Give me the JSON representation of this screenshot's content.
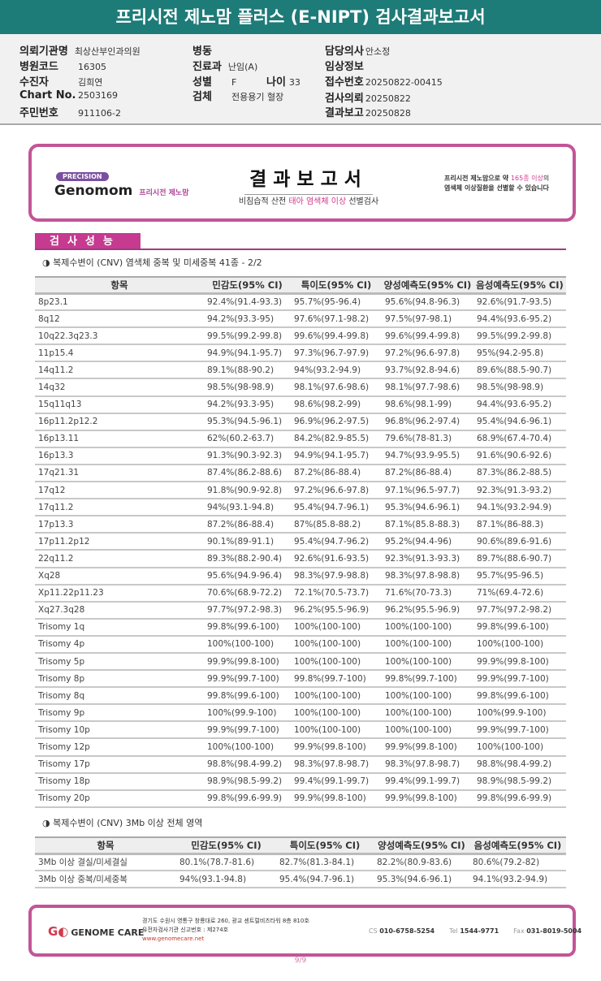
{
  "title": "프리시전 제노맘 플러스 (E-NIPT) 검사결과보고서",
  "patient": {
    "hospital_label": "의뢰기관명",
    "hospital": "최상산부인과의원",
    "code_label": "병원코드",
    "code": "16305",
    "name_label": "수진자",
    "name": "김희연",
    "chart_label": "Chart No.",
    "chart": "2503169",
    "rrn_label": "주민번호",
    "rrn": "911106-2",
    "ward_label": "병동",
    "ward": "",
    "dept_label": "진료과",
    "dept": "난임(A)",
    "sex_label": "성별",
    "sex": "F",
    "age_label": "나이",
    "age": "33",
    "specimen_label": "검체",
    "specimen": "전용용기 혈장",
    "doctor_label": "담당의사",
    "doctor": "안소정",
    "clinical_label": "임상정보",
    "clinical": "",
    "receipt_label": "접수번호",
    "receipt": "20250822-00415",
    "request_label": "검사의뢰",
    "request": "20250822",
    "report_label": "결과보고",
    "report": "20250828"
  },
  "banner": {
    "precision": "PRECISION",
    "brand": "Genomom",
    "brand_kr": "프리시전 제노맘",
    "title": "결과보고서",
    "sub_a": "비침습적 산전 ",
    "sub_b": "태아 염색체 이상",
    "sub_c": " 선별검사",
    "right_a": "프리시전 제노맘으로 약 ",
    "right_b": "165종 이상",
    "right_c": "의",
    "right_d": "염색체 이상질환을 선별할 수 있습니다"
  },
  "section": "검사성능",
  "sub1": "◑ 복제수변이 (CNV) 염색체 중복 및 미세중복 41종 - 2/2",
  "sub2": "◑ 복제수변이 (CNV) 3Mb 이상 전체 영역",
  "headers": [
    "항목",
    "민감도(95% CI)",
    "특이도(95% CI)",
    "양성예측도(95% CI)",
    "음성예측도(95% CI)"
  ],
  "table1": [
    [
      "8p23.1",
      "92.4%(91.4-93.3)",
      "95.7%(95-96.4)",
      "95.6%(94.8-96.3)",
      "92.6%(91.7-93.5)"
    ],
    [
      "8q12",
      "94.2%(93.3-95)",
      "97.6%(97.1-98.2)",
      "97.5%(97-98.1)",
      "94.4%(93.6-95.2)"
    ],
    [
      "10q22.3q23.3",
      "99.5%(99.2-99.8)",
      "99.6%(99.4-99.8)",
      "99.6%(99.4-99.8)",
      "99.5%(99.2-99.8)"
    ],
    [
      "11p15.4",
      "94.9%(94.1-95.7)",
      "97.3%(96.7-97.9)",
      "97.2%(96.6-97.8)",
      "95%(94.2-95.8)"
    ],
    [
      "14q11.2",
      "89.1%(88-90.2)",
      "94%(93.2-94.9)",
      "93.7%(92.8-94.6)",
      "89.6%(88.5-90.7)"
    ],
    [
      "14q32",
      "98.5%(98-98.9)",
      "98.1%(97.6-98.6)",
      "98.1%(97.7-98.6)",
      "98.5%(98-98.9)"
    ],
    [
      "15q11q13",
      "94.2%(93.3-95)",
      "98.6%(98.2-99)",
      "98.6%(98.1-99)",
      "94.4%(93.6-95.2)"
    ],
    [
      "16p11.2p12.2",
      "95.3%(94.5-96.1)",
      "96.9%(96.2-97.5)",
      "96.8%(96.2-97.4)",
      "95.4%(94.6-96.1)"
    ],
    [
      "16p13.11",
      "62%(60.2-63.7)",
      "84.2%(82.9-85.5)",
      "79.6%(78-81.3)",
      "68.9%(67.4-70.4)"
    ],
    [
      "16p13.3",
      "91.3%(90.3-92.3)",
      "94.9%(94.1-95.7)",
      "94.7%(93.9-95.5)",
      "91.6%(90.6-92.6)"
    ],
    [
      "17q21.31",
      "87.4%(86.2-88.6)",
      "87.2%(86-88.4)",
      "87.2%(86-88.4)",
      "87.3%(86.2-88.5)"
    ],
    [
      "17q12",
      "91.8%(90.9-92.8)",
      "97.2%(96.6-97.8)",
      "97.1%(96.5-97.7)",
      "92.3%(91.3-93.2)"
    ],
    [
      "17q11.2",
      "94%(93.1-94.8)",
      "95.4%(94.7-96.1)",
      "95.3%(94.6-96.1)",
      "94.1%(93.2-94.9)"
    ],
    [
      "17p13.3",
      "87.2%(86-88.4)",
      "87%(85.8-88.2)",
      "87.1%(85.8-88.3)",
      "87.1%(86-88.3)"
    ],
    [
      "17p11.2p12",
      "90.1%(89-91.1)",
      "95.4%(94.7-96.2)",
      "95.2%(94.4-96)",
      "90.6%(89.6-91.6)"
    ],
    [
      "22q11.2",
      "89.3%(88.2-90.4)",
      "92.6%(91.6-93.5)",
      "92.3%(91.3-93.3)",
      "89.7%(88.6-90.7)"
    ],
    [
      "Xq28",
      "95.6%(94.9-96.4)",
      "98.3%(97.9-98.8)",
      "98.3%(97.8-98.8)",
      "95.7%(95-96.5)"
    ],
    [
      "Xp11.22p11.23",
      "70.6%(68.9-72.2)",
      "72.1%(70.5-73.7)",
      "71.6%(70-73.3)",
      "71%(69.4-72.6)"
    ],
    [
      "Xq27.3q28",
      "97.7%(97.2-98.3)",
      "96.2%(95.5-96.9)",
      "96.2%(95.5-96.9)",
      "97.7%(97.2-98.2)"
    ],
    [
      "Trisomy 1q",
      "99.8%(99.6-100)",
      "100%(100-100)",
      "100%(100-100)",
      "99.8%(99.6-100)"
    ],
    [
      "Trisomy 4p",
      "100%(100-100)",
      "100%(100-100)",
      "100%(100-100)",
      "100%(100-100)"
    ],
    [
      "Trisomy 5p",
      "99.9%(99.8-100)",
      "100%(100-100)",
      "100%(100-100)",
      "99.9%(99.8-100)"
    ],
    [
      "Trisomy 8p",
      "99.9%(99.7-100)",
      "99.8%(99.7-100)",
      "99.8%(99.7-100)",
      "99.9%(99.7-100)"
    ],
    [
      "Trisomy 8q",
      "99.8%(99.6-100)",
      "100%(100-100)",
      "100%(100-100)",
      "99.8%(99.6-100)"
    ],
    [
      "Trisomy 9p",
      "100%(99.9-100)",
      "100%(100-100)",
      "100%(100-100)",
      "100%(99.9-100)"
    ],
    [
      "Trisomy 10p",
      "99.9%(99.7-100)",
      "100%(100-100)",
      "100%(100-100)",
      "99.9%(99.7-100)"
    ],
    [
      "Trisomy 12p",
      "100%(100-100)",
      "99.9%(99.8-100)",
      "99.9%(99.8-100)",
      "100%(100-100)"
    ],
    [
      "Trisomy 17p",
      "98.8%(98.4-99.2)",
      "98.3%(97.8-98.7)",
      "98.3%(97.8-98.7)",
      "98.8%(98.4-99.2)"
    ],
    [
      "Trisomy 18p",
      "98.9%(98.5-99.2)",
      "99.4%(99.1-99.7)",
      "99.4%(99.1-99.7)",
      "98.9%(98.5-99.2)"
    ],
    [
      "Trisomy 20p",
      "99.8%(99.6-99.9)",
      "99.9%(99.8-100)",
      "99.9%(99.8-100)",
      "99.8%(99.6-99.9)"
    ]
  ],
  "table2": [
    [
      "3Mb 이상 결실/미세결실",
      "80.1%(78.7-81.6)",
      "82.7%(81.3-84.1)",
      "82.2%(80.9-83.6)",
      "80.6%(79.2-82)"
    ],
    [
      "3Mb 이상 중복/미세중복",
      "94%(93.1-94.8)",
      "95.4%(94.7-96.1)",
      "95.3%(94.6-96.1)",
      "94.1%(93.2-94.9)"
    ]
  ],
  "footer": {
    "logo": "GENOME CARE",
    "addr1": "경기도 수원시 영통구 창룡대로 260, 광교 센트럴비즈타워 8층 810호",
    "addr2": "유전자검사기관 신고번호 : 제274호",
    "web": "www.genomecare.net",
    "cs_label": "CS",
    "cs": "010-6758-5254",
    "tel_label": "Tel",
    "tel": "1544-9771",
    "fax_label": "Fax",
    "fax": "031-8019-5004"
  },
  "page": "9/9"
}
